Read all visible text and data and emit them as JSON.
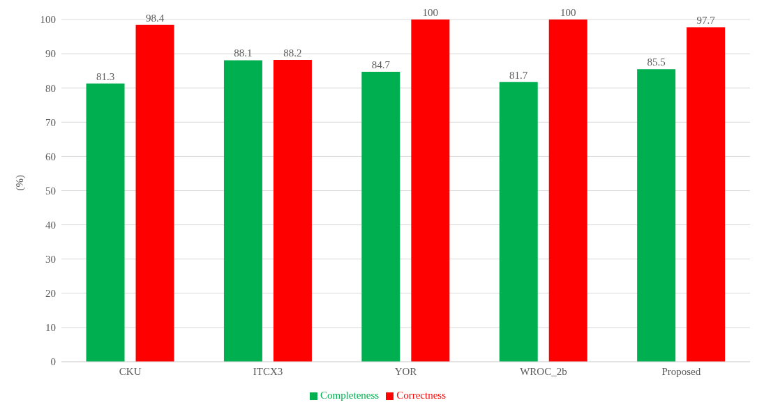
{
  "chart_data": {
    "type": "bar",
    "ylabel": "(%)",
    "categories": [
      "CKU",
      "ITCX3",
      "YOR",
      "WROC_2b",
      "Proposed"
    ],
    "series": [
      {
        "name": "Completeness",
        "color": "#00b050",
        "values": [
          81.3,
          88.1,
          84.7,
          81.7,
          85.5
        ]
      },
      {
        "name": "Correctness",
        "color": "#ff0000",
        "values": [
          98.4,
          88.2,
          100,
          100,
          97.7
        ]
      }
    ],
    "ylim": [
      0,
      100
    ],
    "yticks": [
      0,
      10,
      20,
      30,
      40,
      50,
      60,
      70,
      80,
      90,
      100
    ],
    "grid": "y",
    "legend": "bottom",
    "data_labels": true
  }
}
